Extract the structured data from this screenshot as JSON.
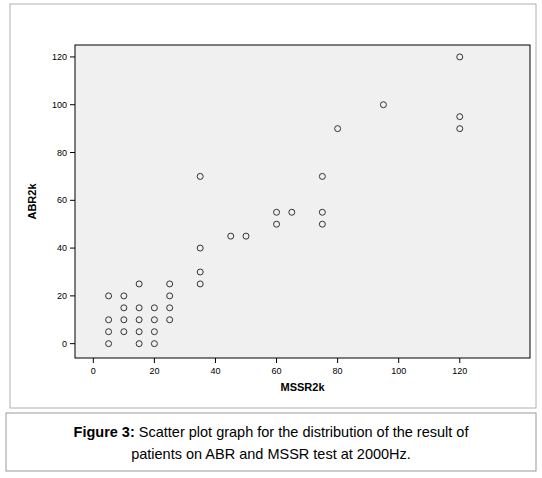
{
  "chart_data": {
    "type": "scatter",
    "figure_label": "Figure 3:",
    "title": [
      "Scatter plot graph for the distribution of the result of",
      "patients on ABR and MSSR test at 2000Hz."
    ],
    "x_label": "MSSR2k",
    "y_label": "ABR2k",
    "x": [
      5,
      5,
      5,
      5,
      10,
      10,
      10,
      10,
      15,
      15,
      15,
      15,
      15,
      20,
      20,
      20,
      20,
      25,
      25,
      25,
      25,
      35,
      35,
      35,
      35,
      45,
      50,
      60,
      60,
      65,
      75,
      75,
      75,
      80,
      95,
      120,
      120,
      120
    ],
    "values": [
      20,
      10,
      5,
      0,
      20,
      15,
      10,
      5,
      25,
      15,
      10,
      5,
      0,
      15,
      10,
      5,
      0,
      25,
      20,
      15,
      10,
      70,
      40,
      30,
      25,
      45,
      45,
      55,
      50,
      55,
      70,
      55,
      50,
      90,
      100,
      120,
      95,
      90
    ],
    "xlim": [
      -6,
      143
    ],
    "ylim": [
      -6,
      125
    ],
    "xticks": [
      0,
      20,
      40,
      60,
      80,
      100,
      120
    ],
    "yticks": [
      0,
      20,
      40,
      60,
      80,
      100,
      120
    ],
    "marker": "circle",
    "grid": false
  }
}
